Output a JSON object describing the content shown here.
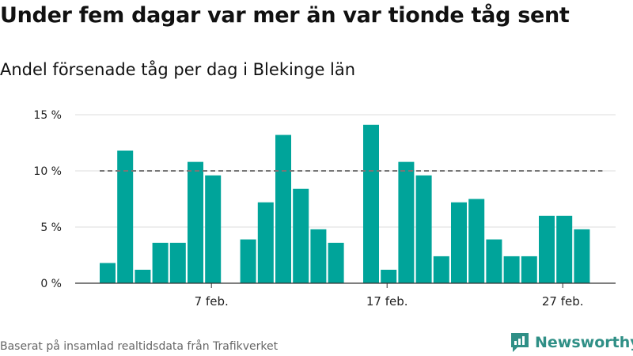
{
  "title": "Under fem dagar var mer än var tionde tåg sent",
  "subtitle": "Andel försenade tåg per dag i Blekinge län",
  "source": "Baserat på insamlad realtidsdata från Trafikverket",
  "brand": {
    "name": "Newsworthy",
    "color": "#2f8f86"
  },
  "chart_data": {
    "type": "bar",
    "title": "Under fem dagar var mer än var tionde tåg sent",
    "subtitle": "Andel försenade tåg per dag i Blekinge län",
    "x_start_day": 1,
    "x_unit": "feb.",
    "days": [
      1,
      2,
      3,
      4,
      5,
      6,
      7,
      8,
      9,
      10,
      11,
      12,
      13,
      14,
      15,
      16,
      17,
      18,
      19,
      20,
      21,
      22,
      23,
      24,
      25,
      26,
      27,
      28
    ],
    "values": [
      1.8,
      11.8,
      1.2,
      3.6,
      3.6,
      10.8,
      9.6,
      null,
      3.9,
      7.2,
      13.2,
      8.4,
      4.8,
      3.6,
      null,
      14.1,
      1.2,
      10.8,
      9.6,
      2.4,
      7.2,
      7.5,
      3.9,
      2.4,
      2.4,
      6.0,
      6.0,
      4.8
    ],
    "ylim": [
      0,
      15
    ],
    "yticks": [
      {
        "value": 0,
        "label": "0 %"
      },
      {
        "value": 5,
        "label": "5 %"
      },
      {
        "value": 10,
        "label": "10 %"
      },
      {
        "value": 15,
        "label": "15 %"
      }
    ],
    "xticks": [
      {
        "day": 7,
        "label": "7 feb."
      },
      {
        "day": 17,
        "label": "17 feb."
      },
      {
        "day": 27,
        "label": "27 feb."
      }
    ],
    "reference_line": {
      "value": 10,
      "style": "dashed",
      "color": "#777777"
    },
    "bar_color": "#00a49a",
    "grid": true
  }
}
